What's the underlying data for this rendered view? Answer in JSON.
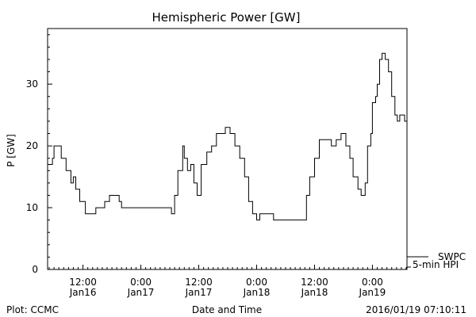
{
  "chart_data": {
    "type": "line",
    "title": "Hemispheric Power [GW]",
    "xlabel": "Date and Time",
    "ylabel": "P [GW]",
    "ylim": [
      0,
      39
    ],
    "yticks": [
      0,
      10,
      20,
      30
    ],
    "xlim": [
      "2016-01-16T04:40",
      "2016-01-19T07:10"
    ],
    "xticks": [
      {
        "t": "2016-01-16T12:00",
        "time": "12:00",
        "day": "Jan16"
      },
      {
        "t": "2016-01-17T00:00",
        "time": "0:00",
        "day": "Jan17"
      },
      {
        "t": "2016-01-17T12:00",
        "time": "12:00",
        "day": "Jan17"
      },
      {
        "t": "2016-01-18T00:00",
        "time": "0:00",
        "day": "Jan18"
      },
      {
        "t": "2016-01-18T12:00",
        "time": "12:00",
        "day": "Jan18"
      },
      {
        "t": "2016-01-19T00:00",
        "time": "0:00",
        "day": "Jan19"
      }
    ],
    "grid": false,
    "series": [
      {
        "name": "5-min HPI",
        "x": [
          "2016-01-16T04:40",
          "2016-01-16T05:40",
          "2016-01-16T06:00",
          "2016-01-16T07:30",
          "2016-01-16T08:30",
          "2016-01-16T09:30",
          "2016-01-16T10:00",
          "2016-01-16T10:30",
          "2016-01-16T11:20",
          "2016-01-16T12:30",
          "2016-01-16T13:40",
          "2016-01-16T14:40",
          "2016-01-16T15:30",
          "2016-01-16T16:30",
          "2016-01-16T17:30",
          "2016-01-16T18:30",
          "2016-01-16T19:30",
          "2016-01-16T20:00",
          "2016-01-16T21:00",
          "2016-01-16T22:00",
          "2016-01-17T00:00",
          "2016-01-17T01:00",
          "2016-01-17T02:00",
          "2016-01-17T04:00",
          "2016-01-17T05:20",
          "2016-01-17T06:20",
          "2016-01-17T07:00",
          "2016-01-17T07:40",
          "2016-01-17T08:40",
          "2016-01-17T09:00",
          "2016-01-17T09:40",
          "2016-01-17T10:20",
          "2016-01-17T11:00",
          "2016-01-17T11:40",
          "2016-01-17T12:30",
          "2016-01-17T13:40",
          "2016-01-17T14:40",
          "2016-01-17T15:40",
          "2016-01-17T16:40",
          "2016-01-17T17:30",
          "2016-01-17T18:30",
          "2016-01-17T19:30",
          "2016-01-17T20:30",
          "2016-01-17T21:30",
          "2016-01-17T22:20",
          "2016-01-17T23:10",
          "2016-01-18T00:00",
          "2016-01-18T00:40",
          "2016-01-18T01:20",
          "2016-01-18T02:00",
          "2016-01-18T03:30",
          "2016-01-18T05:00",
          "2016-01-18T07:00",
          "2016-01-18T09:00",
          "2016-01-18T10:20",
          "2016-01-18T11:00",
          "2016-01-18T12:00",
          "2016-01-18T13:00",
          "2016-01-18T14:00",
          "2016-01-18T15:30",
          "2016-01-18T16:30",
          "2016-01-18T17:30",
          "2016-01-18T18:30",
          "2016-01-18T19:20",
          "2016-01-18T20:00",
          "2016-01-18T21:00",
          "2016-01-18T21:40",
          "2016-01-18T22:30",
          "2016-01-18T23:00",
          "2016-01-18T23:40",
          "2016-01-19T00:00",
          "2016-01-19T00:40",
          "2016-01-19T01:00",
          "2016-01-19T01:30",
          "2016-01-19T02:00",
          "2016-01-19T02:40",
          "2016-01-19T03:20",
          "2016-01-19T04:00",
          "2016-01-19T04:40",
          "2016-01-19T05:10",
          "2016-01-19T05:40",
          "2016-01-19T06:10",
          "2016-01-19T06:40",
          "2016-01-19T07:10"
        ],
        "values": [
          17,
          18,
          20,
          18,
          16,
          14,
          15,
          13,
          11,
          9,
          9,
          10,
          10,
          11,
          12,
          12,
          11,
          10,
          10,
          10,
          10,
          10,
          10,
          10,
          10,
          9,
          12,
          16,
          20,
          18,
          16,
          17,
          14,
          12,
          17,
          19,
          20,
          22,
          22,
          23,
          22,
          20,
          18,
          15,
          11,
          9,
          8,
          9,
          9,
          9,
          8,
          8,
          8,
          8,
          12,
          15,
          18,
          21,
          21,
          20,
          21,
          22,
          20,
          18,
          15,
          13,
          12,
          14,
          20,
          22,
          27,
          28,
          30,
          34,
          35,
          34,
          32,
          28,
          25,
          24,
          25,
          25,
          24,
          23
        ]
      }
    ],
    "legend": [
      {
        "label": "SWPC",
        "style": "line"
      },
      {
        "label": "5-min HPI",
        "style": "line"
      }
    ],
    "legend_placement": "bottom-right"
  },
  "footer": {
    "left": "Plot: CCMC",
    "right": "2016/01/19 07:10:11"
  }
}
